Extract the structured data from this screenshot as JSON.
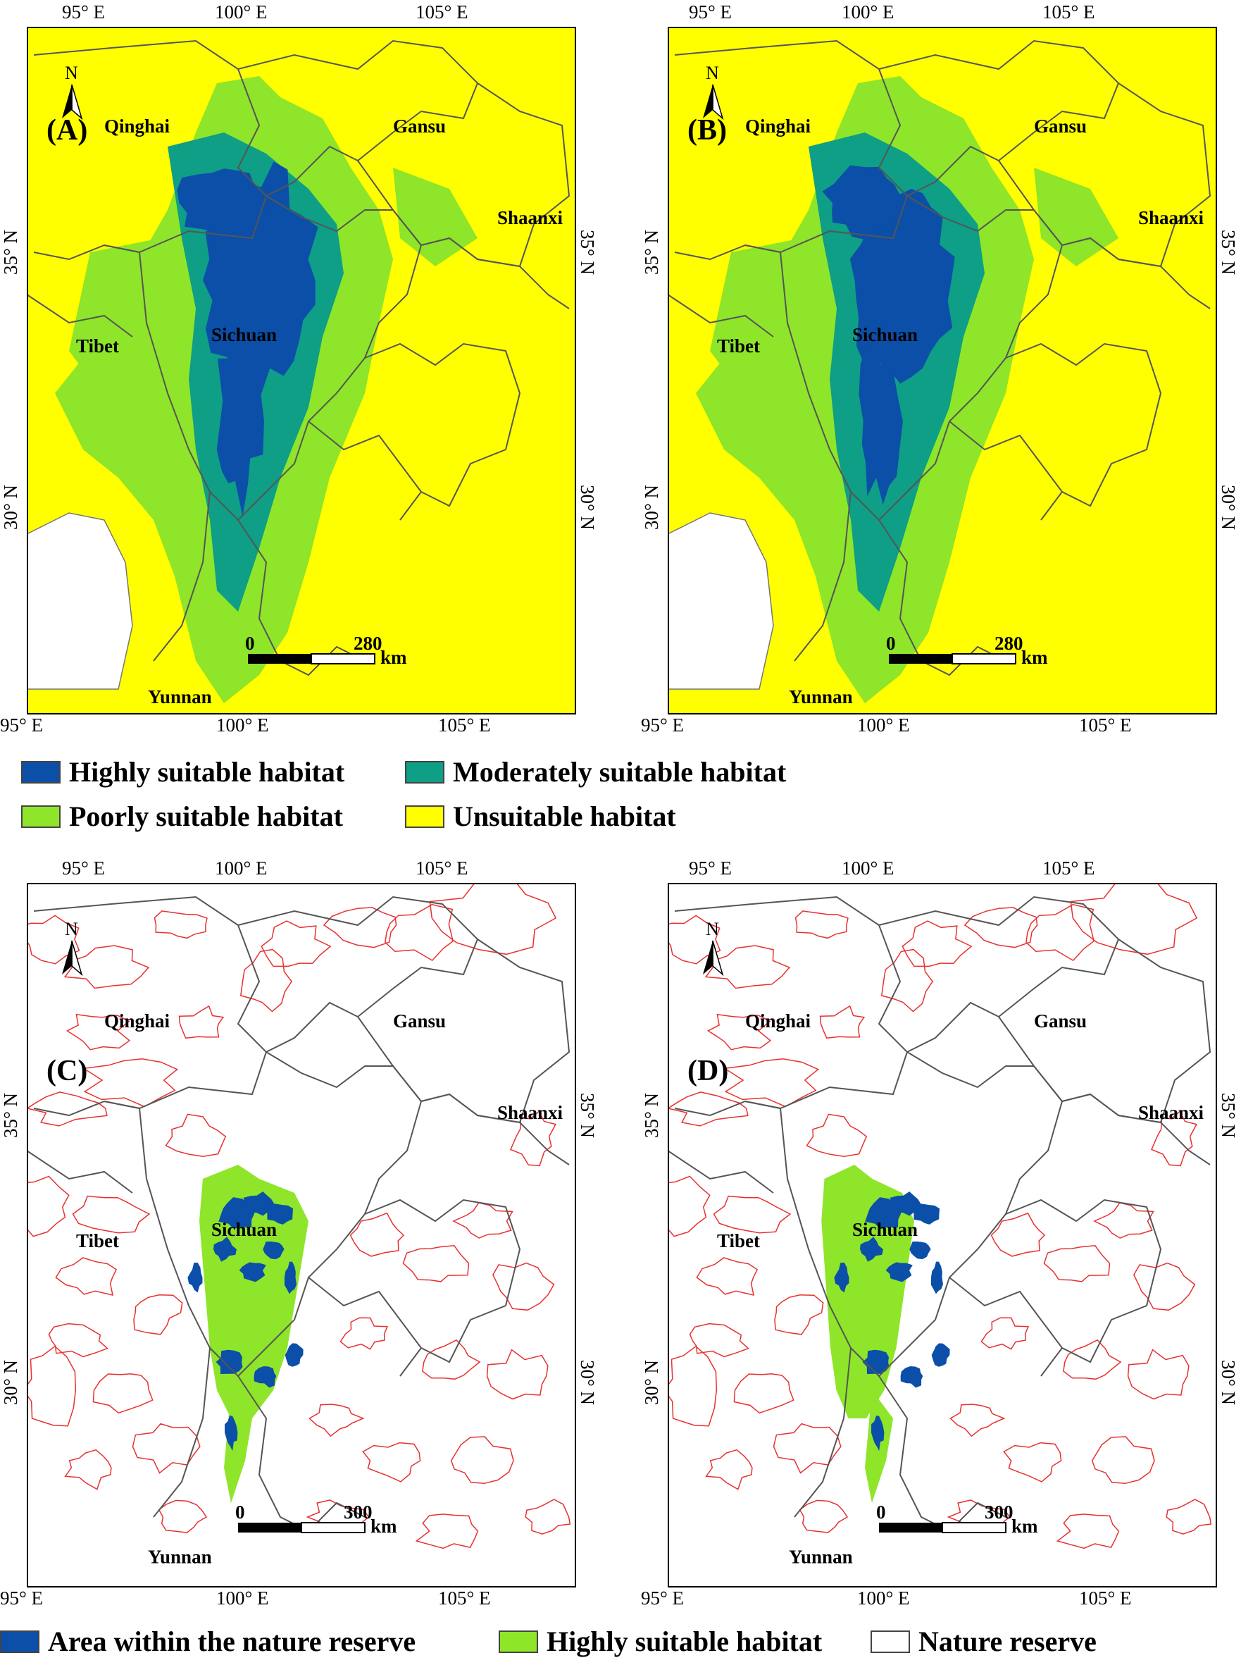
{
  "panels": [
    {
      "id": "A",
      "label": "(A)",
      "type": "suitability"
    },
    {
      "id": "B",
      "label": "(B)",
      "type": "suitability"
    },
    {
      "id": "C",
      "label": "(C)",
      "type": "reserve",
      "shift": 0
    },
    {
      "id": "D",
      "label": "(D)",
      "type": "reserve",
      "shift": 1
    }
  ],
  "coords": {
    "lon_95": "95° E",
    "lon_100": "100° E",
    "lon_105": "105° E",
    "lat_35": "35° N",
    "lat_30": "30° N"
  },
  "provinces": {
    "qinghai": "Qinghai",
    "gansu": "Gansu",
    "shaanxi": "Shaanxi",
    "tibet": "Tibet",
    "sichuan": "Sichuan",
    "yunnan": "Yunnan"
  },
  "north_arrow": "N",
  "scalebars": {
    "top": {
      "zero": "0",
      "end": "280",
      "unit": "km"
    },
    "bottom": {
      "zero": "0",
      "end": "300",
      "unit": "km"
    }
  },
  "legend_top": [
    {
      "label": "Highly suitable habitat",
      "color": "#0b4fa8"
    },
    {
      "label": "Moderately suitable habitat",
      "color": "#0f9e86"
    },
    {
      "label": "Poorly suitable habitat",
      "color": "#8ee52a"
    },
    {
      "label": "Unsuitable habitat",
      "color": "#ffff00"
    }
  ],
  "legend_bottom": [
    {
      "label": "Area within the nature reserve",
      "color": "#0b4fa8"
    },
    {
      "label": "Highly suitable habitat",
      "color": "#8ee52a"
    },
    {
      "label": "Nature reserve",
      "color": "#ffffff"
    }
  ],
  "colors": {
    "high": "#0b4fa8",
    "moderate": "#0f9e86",
    "poor": "#8ee52a",
    "unsuitable": "#ffff00",
    "reserve": "#e83030",
    "boundary": "#555555"
  }
}
